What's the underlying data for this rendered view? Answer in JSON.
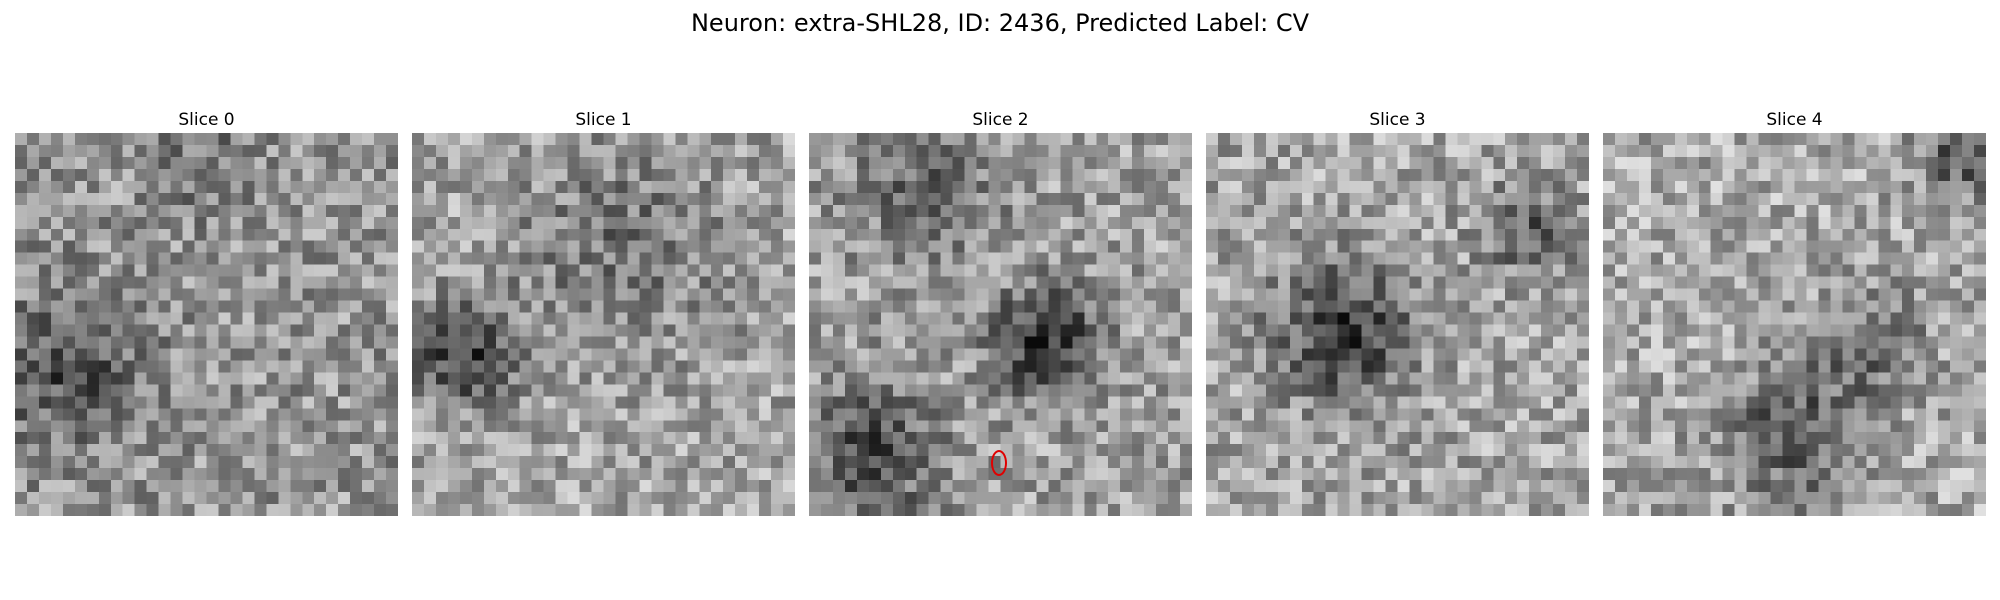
{
  "figure": {
    "title": "Neuron: extra-SHL28, ID: 2436, Predicted Label: CV"
  },
  "slices": [
    {
      "title": "Slice 0",
      "dark_blobs": [
        [
          0.12,
          0.62,
          0.2,
          0.6
        ],
        [
          0.5,
          0.05,
          0.15,
          0.3
        ]
      ],
      "base": 150
    },
    {
      "title": "Slice 1",
      "dark_blobs": [
        [
          0.12,
          0.58,
          0.14,
          0.9
        ],
        [
          0.55,
          0.28,
          0.28,
          0.4
        ]
      ],
      "base": 165
    },
    {
      "title": "Slice 2",
      "dark_blobs": [
        [
          0.62,
          0.55,
          0.14,
          1.0
        ],
        [
          0.15,
          0.85,
          0.18,
          0.7
        ],
        [
          0.3,
          0.12,
          0.2,
          0.5
        ]
      ],
      "base": 160,
      "marker": true
    },
    {
      "title": "Slice 3",
      "dark_blobs": [
        [
          0.35,
          0.52,
          0.18,
          0.9
        ],
        [
          0.85,
          0.25,
          0.12,
          0.6
        ]
      ],
      "base": 165
    },
    {
      "title": "Slice 4",
      "dark_blobs": [
        [
          0.5,
          0.8,
          0.18,
          0.7
        ],
        [
          0.7,
          0.55,
          0.15,
          0.5
        ],
        [
          0.95,
          0.05,
          0.12,
          0.7
        ]
      ],
      "base": 170
    }
  ],
  "marker_color": "#e00000",
  "colormap": "gray"
}
